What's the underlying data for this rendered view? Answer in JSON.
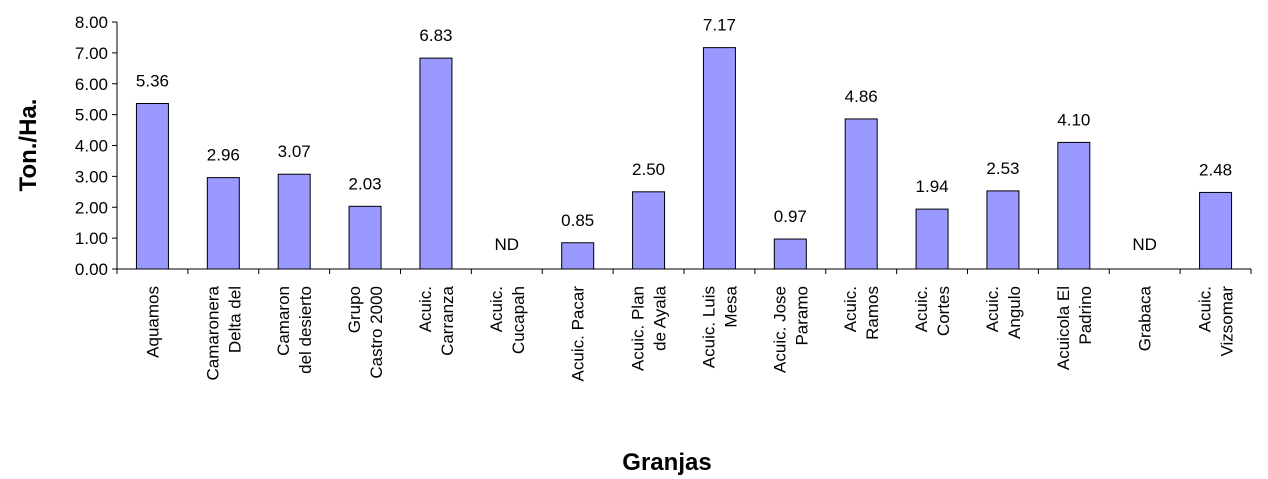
{
  "chart_data": {
    "type": "bar",
    "title": "",
    "xlabel": "Granjas",
    "ylabel": "Ton./Ha.",
    "ylim": [
      0,
      8
    ],
    "yticks": [
      "0.00",
      "1.00",
      "2.00",
      "3.00",
      "4.00",
      "5.00",
      "6.00",
      "7.00",
      "8.00"
    ],
    "grid": false,
    "bar_color": "#9999ff",
    "categories": [
      [
        "Aquamos"
      ],
      [
        "Camaronera",
        "Delta del"
      ],
      [
        "Camaron",
        "del desierto"
      ],
      [
        "Grupo",
        "Castro 2000"
      ],
      [
        "Acuic.",
        "Carranza"
      ],
      [
        "Acuic.",
        "Cucapah"
      ],
      [
        "Acuic. Pacar"
      ],
      [
        "Acuic. Plan",
        "de Ayala"
      ],
      [
        "Acuic. Luis",
        "Mesa"
      ],
      [
        "Acuic. Jose",
        "Paramo"
      ],
      [
        "Acuic.",
        "Ramos"
      ],
      [
        "Acuic.",
        "Cortes"
      ],
      [
        "Acuic.",
        "Angulo"
      ],
      [
        "Acuicola El",
        "Padrino"
      ],
      [
        "Grabaca"
      ],
      [
        "Acuic.",
        "Vizsomar"
      ]
    ],
    "values": [
      5.36,
      2.96,
      3.07,
      2.03,
      6.83,
      null,
      0.85,
      2.5,
      7.17,
      0.97,
      4.86,
      1.94,
      2.53,
      4.1,
      null,
      2.48
    ],
    "data_labels": [
      "5.36",
      "2.96",
      "3.07",
      "2.03",
      "6.83",
      "ND",
      "0.85",
      "2.50",
      "7.17",
      "0.97",
      "4.86",
      "1.94",
      "2.53",
      "4.10",
      "ND",
      "2.48"
    ]
  }
}
